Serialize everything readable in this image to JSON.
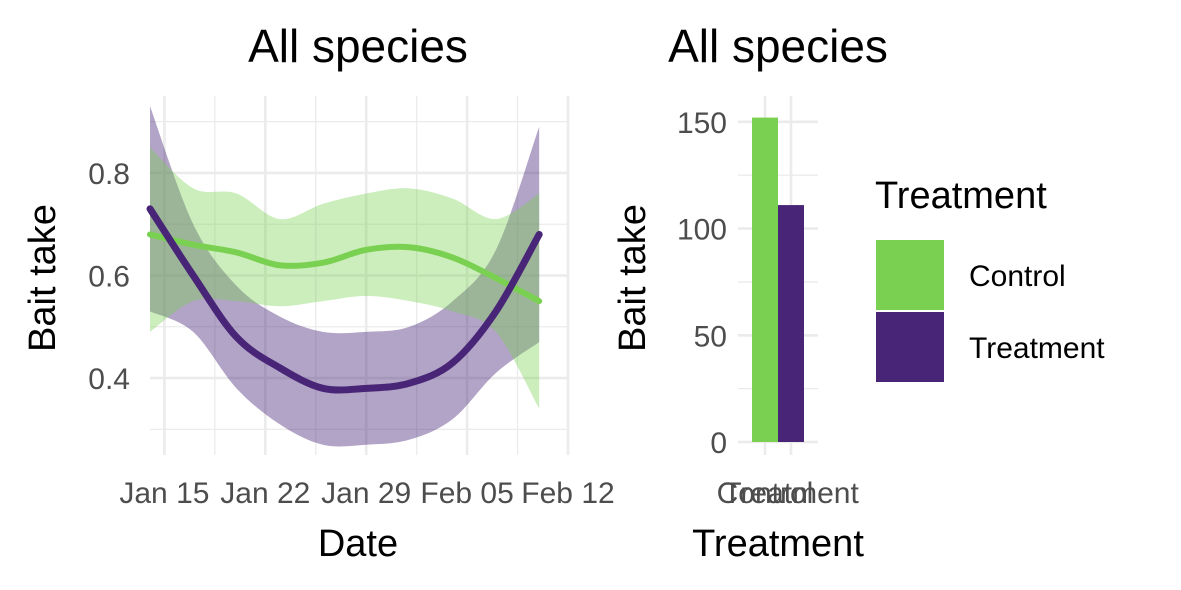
{
  "chart_data": [
    {
      "type": "line",
      "title": "All species",
      "xlabel": "Date",
      "ylabel": "Bait take",
      "xlim": [
        "2020-01-14",
        "2020-02-12"
      ],
      "ylim": [
        0.25,
        0.95
      ],
      "x_ticks": [
        "Jan 15",
        "Jan 22",
        "Jan 29",
        "Feb 05",
        "Feb 12"
      ],
      "y_ticks": [
        "0.4",
        "0.6",
        "0.8"
      ],
      "y_tick_values": [
        0.4,
        0.6,
        0.8
      ],
      "grid": true,
      "series": [
        {
          "name": "Control",
          "color": "#7AD151",
          "x": [
            "2020-01-14",
            "2020-01-17",
            "2020-01-20",
            "2020-01-23",
            "2020-01-26",
            "2020-01-29",
            "2020-02-01",
            "2020-02-04",
            "2020-02-07",
            "2020-02-10"
          ],
          "y": [
            0.68,
            0.66,
            0.645,
            0.62,
            0.625,
            0.65,
            0.655,
            0.635,
            0.595,
            0.55
          ],
          "lower": [
            0.49,
            0.55,
            0.55,
            0.54,
            0.55,
            0.56,
            0.55,
            0.53,
            0.49,
            0.34
          ],
          "upper": [
            0.85,
            0.77,
            0.76,
            0.71,
            0.74,
            0.76,
            0.77,
            0.75,
            0.71,
            0.76
          ]
        },
        {
          "name": "Treatment",
          "color": "#482576",
          "x": [
            "2020-01-14",
            "2020-01-17",
            "2020-01-20",
            "2020-01-23",
            "2020-01-26",
            "2020-01-29",
            "2020-02-01",
            "2020-02-04",
            "2020-02-07",
            "2020-02-10"
          ],
          "y": [
            0.73,
            0.6,
            0.48,
            0.42,
            0.38,
            0.38,
            0.39,
            0.43,
            0.53,
            0.68
          ],
          "lower": [
            0.53,
            0.49,
            0.38,
            0.31,
            0.27,
            0.27,
            0.28,
            0.32,
            0.41,
            0.47
          ],
          "upper": [
            0.93,
            0.7,
            0.58,
            0.52,
            0.49,
            0.49,
            0.5,
            0.55,
            0.65,
            0.89
          ]
        }
      ]
    },
    {
      "type": "bar",
      "title": "All species",
      "xlabel": "Treatment",
      "ylabel": "Bait take",
      "categories": [
        "Control",
        "Treatment"
      ],
      "values": [
        152,
        111
      ],
      "colors": [
        "#7AD151",
        "#482576"
      ],
      "ylim": [
        0,
        160
      ],
      "y_ticks": [
        "0",
        "50",
        "100",
        "150"
      ],
      "y_tick_values": [
        0,
        50,
        100,
        150
      ],
      "grid": true,
      "legend": {
        "title": "Treatment",
        "position": "right",
        "entries": [
          {
            "label": "Control",
            "color": "#7AD151"
          },
          {
            "label": "Treatment",
            "color": "#482576"
          }
        ]
      }
    }
  ]
}
